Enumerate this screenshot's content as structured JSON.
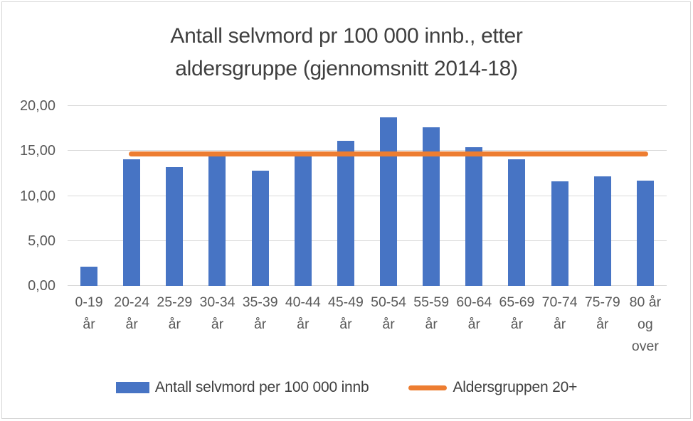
{
  "figure": {
    "background": "#ffffff",
    "border_color": "#d6d6d6"
  },
  "colors": {
    "bar_blue": "#4774c4",
    "line_orange": "#ed7d31",
    "gridline": "#d9d9d9",
    "axis_text": "#595959",
    "title_text": "#404040"
  },
  "chart_data": {
    "type": "bar",
    "title": "Antall selvmord pr 100 000 innb., etter aldersgruppe (gjennomsnitt 2014-18)",
    "title_lines": [
      "Antall selvmord pr 100 000 innb., etter",
      "aldersgruppe (gjennomsnitt 2014-18)"
    ],
    "categories": [
      "0-19 år",
      "20-24 år",
      "25-29 år",
      "30-34 år",
      "35-39 år",
      "40-44 år",
      "45-49 år",
      "50-54 år",
      "55-59 år",
      "60-64 år",
      "65-69 år",
      "70-74 år",
      "75-79 år",
      "80 år og over"
    ],
    "x_tick_display": [
      "0-19\når",
      "20-24\når",
      "25-29\når",
      "30-34\når",
      "35-39\når",
      "40-44\når",
      "45-49\når",
      "50-54\når",
      "55-59\når",
      "60-64\når",
      "65-69\når",
      "70-74\når",
      "75-79\når",
      "80 år\nog\nover"
    ],
    "series": [
      {
        "name": "Antall selvmord per 100 000 innb",
        "type": "bar",
        "color": "#4774c4",
        "values": [
          2.1,
          14.1,
          13.2,
          14.5,
          12.8,
          14.8,
          16.1,
          18.7,
          17.6,
          15.4,
          14.1,
          11.6,
          12.2,
          11.7
        ]
      },
      {
        "name": "Aldersgruppen 20+",
        "type": "line",
        "color": "#ed7d31",
        "value": 14.7,
        "start_category_index": 1,
        "end_category_index": 13
      }
    ],
    "ylim": [
      0,
      20
    ],
    "y_ticks": [
      0,
      5,
      10,
      15,
      20
    ],
    "y_tick_labels": [
      "0,00",
      "5,00",
      "10,00",
      "15,00",
      "20,00"
    ],
    "grid": "horizontal",
    "legend_position": "bottom"
  },
  "legend": {
    "items": [
      {
        "label": "Antall selvmord per 100 000 innb",
        "marker": "bar-swatch",
        "color": "#4774c4"
      },
      {
        "label": "Aldersgruppen 20+",
        "marker": "line",
        "color": "#ed7d31"
      }
    ]
  }
}
